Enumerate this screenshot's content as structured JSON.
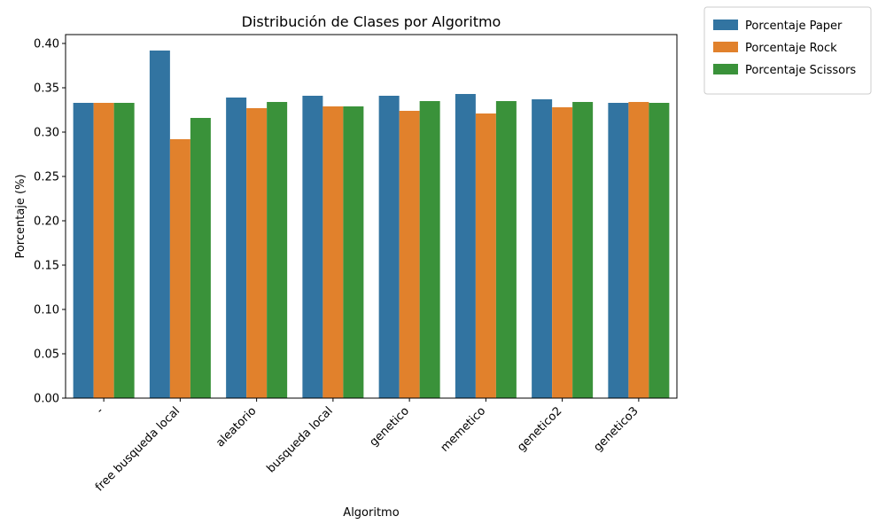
{
  "chart_data": {
    "type": "bar",
    "title": "Distribución de Clases por Algoritmo",
    "xlabel": "Algoritmo",
    "ylabel": "Porcentaje (%)",
    "categories": [
      "-",
      "free busqueda local",
      "aleatorio",
      "busqueda local",
      "genetico",
      "memetico",
      "genetico2",
      "genetico3"
    ],
    "series": [
      {
        "name": "Porcentaje Paper",
        "color": "#3274a1",
        "values": [
          0.333,
          0.392,
          0.339,
          0.341,
          0.341,
          0.343,
          0.337,
          0.333
        ]
      },
      {
        "name": "Porcentaje Rock",
        "color": "#e1812c",
        "values": [
          0.333,
          0.292,
          0.327,
          0.329,
          0.324,
          0.321,
          0.328,
          0.334
        ]
      },
      {
        "name": "Porcentaje Scissors",
        "color": "#3a923a",
        "values": [
          0.333,
          0.316,
          0.334,
          0.329,
          0.335,
          0.335,
          0.334,
          0.333
        ]
      }
    ],
    "ylim": [
      0,
      0.41
    ],
    "yticks": [
      "0.00",
      "0.05",
      "0.10",
      "0.15",
      "0.20",
      "0.25",
      "0.30",
      "0.35",
      "0.40"
    ],
    "grid": false,
    "legend_position": "outside-top-right"
  }
}
